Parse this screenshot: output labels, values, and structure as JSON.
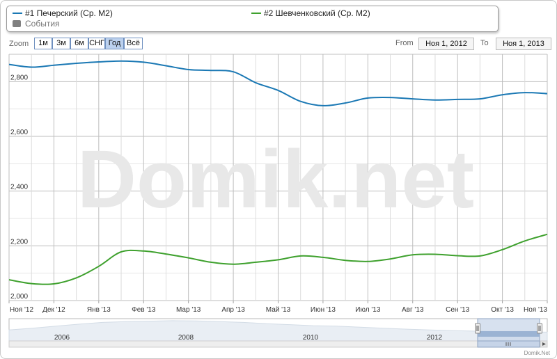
{
  "legend": {
    "series1": "#1 Печерский (Ср. М2)",
    "series2": "#2 Шевченковский (Ср. М2)",
    "events": "События"
  },
  "zoom": {
    "label": "Zoom",
    "buttons": [
      "1м",
      "3м",
      "6м",
      "СНГ",
      "Год",
      "Всё"
    ],
    "active": "Год"
  },
  "range": {
    "from_label": "From",
    "from_value": "Ноя 1, 2012",
    "to_label": "To",
    "to_value": "Ноя 1, 2013"
  },
  "watermark": "Domik.net",
  "credit": "Domik.Net",
  "colors": {
    "series1": "#1a78b4",
    "series2": "#3fa12e",
    "events": "#808080",
    "active_button": "#bcd1ee"
  },
  "chart_data": {
    "type": "line",
    "x": [
      "Ноя '12",
      "",
      "Дек '12",
      "",
      "Янв '13",
      "",
      "Фев '13",
      "",
      "Мар '13",
      "",
      "Апр '13",
      "",
      "Май '13",
      "",
      "Июн '13",
      "",
      "Июл '13",
      "",
      "Авг '13",
      "",
      "Сен '13",
      "",
      "Окт '13",
      "",
      "Ноя '13"
    ],
    "x_ticks": [
      "Ноя '12",
      "Дек '12",
      "Янв '13",
      "Фев '13",
      "Мар '13",
      "Апр '13",
      "Май '13",
      "Июн '13",
      "Июл '13",
      "Авг '13",
      "Сен '13",
      "Окт '13",
      "Ноя '13"
    ],
    "y_ticks": [
      "2,000",
      "2,200",
      "2,400",
      "2,600",
      "2,800"
    ],
    "ylim": [
      2000,
      2900
    ],
    "series": [
      {
        "name": "#1 Печерский (Ср. М2)",
        "values": [
          2863,
          2853,
          2860,
          2867,
          2872,
          2875,
          2871,
          2858,
          2844,
          2841,
          2836,
          2796,
          2768,
          2728,
          2712,
          2722,
          2740,
          2742,
          2737,
          2733,
          2735,
          2737,
          2752,
          2760,
          2756
        ]
      },
      {
        "name": "#2 Шевченковский (Ср. М2)",
        "values": [
          2076,
          2062,
          2061,
          2083,
          2125,
          2178,
          2181,
          2170,
          2156,
          2140,
          2133,
          2140,
          2149,
          2163,
          2158,
          2147,
          2143,
          2152,
          2167,
          2169,
          2164,
          2163,
          2186,
          2218,
          2242
        ]
      }
    ],
    "navigator_labels": [
      "2006",
      "2008",
      "2010",
      "2012"
    ]
  }
}
